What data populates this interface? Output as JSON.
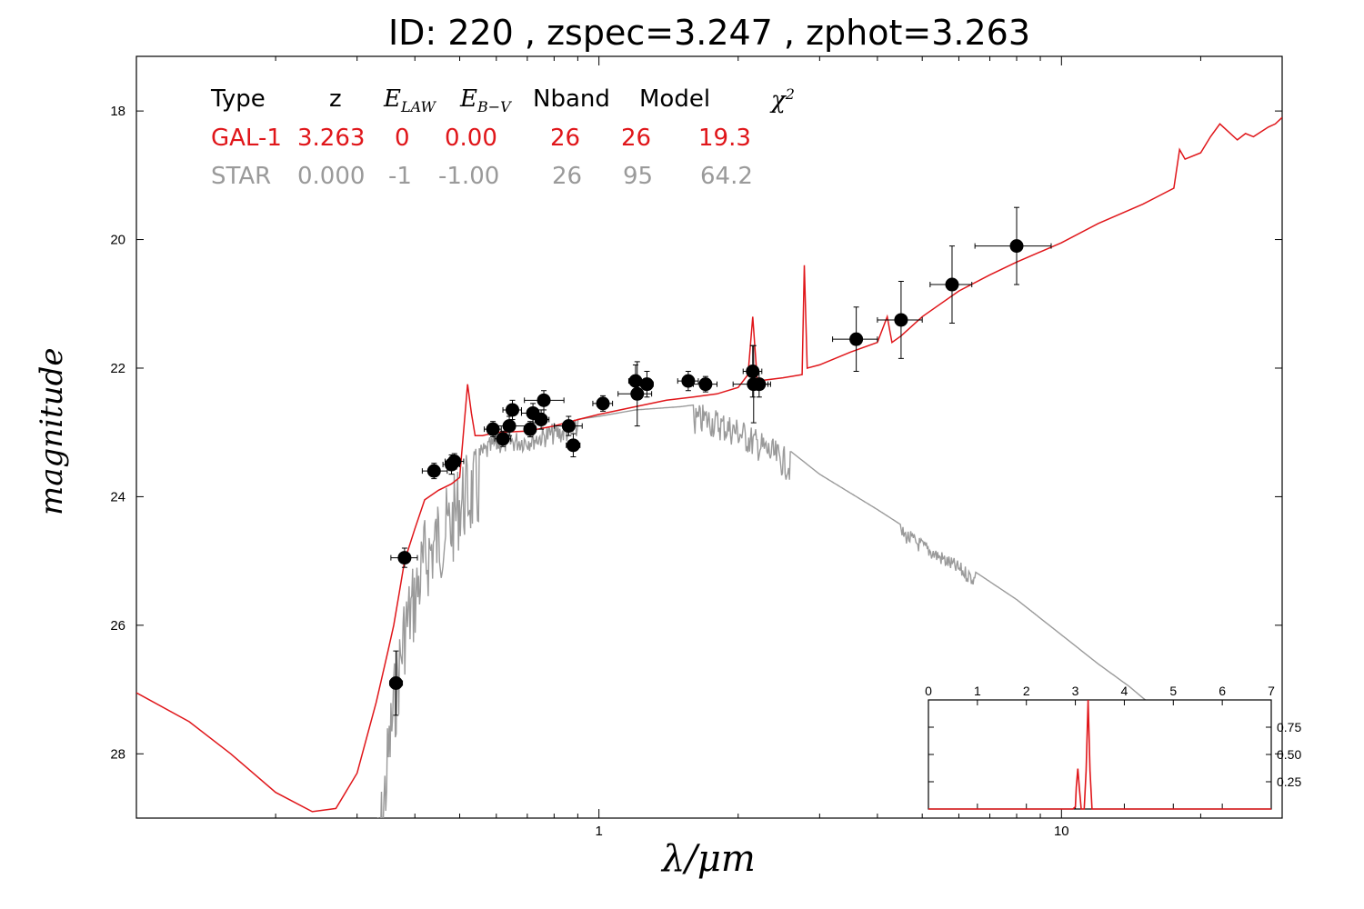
{
  "title": "ID:  220   , zspec=3.247 , zphot=3.263",
  "xlabel": "λ/μm",
  "ylabel": "magnitude",
  "colors": {
    "galaxy": "#e0161a",
    "star": "#9a9a9a",
    "points": "#000000"
  },
  "legend": {
    "headers": [
      "Type",
      "z",
      "E_LAW",
      "E_B−V",
      "Nband",
      "Model",
      "χ²"
    ],
    "rows": [
      {
        "values": [
          "GAL-1",
          "3.263",
          "0",
          "0.00",
          "26",
          "26",
          "19.3"
        ],
        "color": "#e0161a"
      },
      {
        "values": [
          "STAR",
          "0.000",
          "-1",
          "-1.00",
          "26",
          "95",
          "64.2"
        ],
        "color": "#9a9a9a"
      }
    ]
  },
  "chart_data": [
    {
      "type": "scatter",
      "xscale": "log",
      "xlim": [
        0.1,
        30
      ],
      "ylim": [
        29,
        17.15
      ],
      "xticks": [
        1,
        10
      ],
      "xticklabels": [
        "1",
        "10"
      ],
      "yticks": [
        18,
        20,
        22,
        24,
        26,
        28
      ],
      "yticklabels": [
        "18",
        "20",
        "22",
        "24",
        "26",
        "28"
      ],
      "xlabel": "λ/μm",
      "ylabel": "magnitude",
      "points": [
        {
          "x": 0.364,
          "y": 26.9,
          "xerr": [
            0.353,
            0.376
          ],
          "yerr": 0.5
        },
        {
          "x": 0.38,
          "y": 24.95,
          "xerr": [
            0.355,
            0.405
          ],
          "yerr": 0.15
        },
        {
          "x": 0.44,
          "y": 23.6,
          "xerr": [
            0.415,
            0.47
          ],
          "yerr": 0.12
        },
        {
          "x": 0.48,
          "y": 23.5,
          "xerr": [
            0.46,
            0.5
          ],
          "yerr": 0.15
        },
        {
          "x": 0.487,
          "y": 23.45,
          "xerr": [
            0.465,
            0.51
          ],
          "yerr": 0.12
        },
        {
          "x": 0.59,
          "y": 22.95,
          "xerr": [
            0.565,
            0.615
          ],
          "yerr": 0.12
        },
        {
          "x": 0.62,
          "y": 23.1,
          "xerr": [
            0.595,
            0.645
          ],
          "yerr": 0.12
        },
        {
          "x": 0.64,
          "y": 22.9,
          "xerr": [
            0.58,
            0.7
          ],
          "yerr": 0.15
        },
        {
          "x": 0.65,
          "y": 22.65,
          "xerr": [
            0.62,
            0.68
          ],
          "yerr": 0.15
        },
        {
          "x": 0.71,
          "y": 22.95,
          "xerr": [
            0.69,
            0.73
          ],
          "yerr": 0.12
        },
        {
          "x": 0.72,
          "y": 22.7,
          "xerr": [
            0.68,
            0.76
          ],
          "yerr": 0.15
        },
        {
          "x": 0.75,
          "y": 22.8,
          "xerr": [
            0.72,
            0.78
          ],
          "yerr": 0.15
        },
        {
          "x": 0.76,
          "y": 22.5,
          "xerr": [
            0.69,
            0.84
          ],
          "yerr": 0.15
        },
        {
          "x": 0.86,
          "y": 22.9,
          "xerr": [
            0.8,
            0.92
          ],
          "yerr": 0.15
        },
        {
          "x": 0.88,
          "y": 23.2,
          "xerr": [
            0.85,
            0.91
          ],
          "yerr": 0.18
        },
        {
          "x": 1.02,
          "y": 22.55,
          "xerr": [
            0.97,
            1.07
          ],
          "yerr": 0.12
        },
        {
          "x": 1.2,
          "y": 22.2,
          "xerr": [
            1.16,
            1.25
          ],
          "yerr": 0.25
        },
        {
          "x": 1.21,
          "y": 22.4,
          "xerr": [
            1.1,
            1.3
          ],
          "yerr": 0.5
        },
        {
          "x": 1.27,
          "y": 22.25,
          "xerr": [
            1.23,
            1.31
          ],
          "yerr": 0.2
        },
        {
          "x": 1.56,
          "y": 22.2,
          "xerr": [
            1.48,
            1.64
          ],
          "yerr": 0.15
        },
        {
          "x": 1.7,
          "y": 22.25,
          "xerr": [
            1.6,
            1.8
          ],
          "yerr": 0.12
        },
        {
          "x": 2.15,
          "y": 22.05,
          "xerr": [
            2.05,
            2.25
          ],
          "yerr": 0.4
        },
        {
          "x": 2.16,
          "y": 22.25,
          "xerr": [
            1.95,
            2.35
          ],
          "yerr": 0.6
        },
        {
          "x": 2.22,
          "y": 22.25,
          "xerr": [
            2.12,
            2.32
          ],
          "yerr": 0.2
        },
        {
          "x": 3.6,
          "y": 21.55,
          "xerr": [
            3.2,
            4.0
          ],
          "yerr": 0.5
        },
        {
          "x": 4.5,
          "y": 21.25,
          "xerr": [
            4.0,
            5.0
          ],
          "yerr": 0.6
        },
        {
          "x": 5.8,
          "y": 20.7,
          "xerr": [
            5.2,
            6.4
          ],
          "yerr": 0.6
        },
        {
          "x": 8.0,
          "y": 20.1,
          "xerr": [
            6.5,
            9.5
          ],
          "yerr": 0.6
        }
      ],
      "series": [
        {
          "name": "GAL-1",
          "color": "#e0161a",
          "x": [
            0.1,
            0.13,
            0.16,
            0.2,
            0.24,
            0.27,
            0.3,
            0.33,
            0.35,
            0.36,
            0.37,
            0.38,
            0.4,
            0.42,
            0.45,
            0.48,
            0.5,
            0.52,
            0.53,
            0.54,
            0.56,
            0.6,
            0.7,
            0.8,
            0.9,
            1.0,
            1.2,
            1.4,
            1.6,
            1.8,
            2.0,
            2.1,
            2.15,
            2.2,
            2.5,
            2.75,
            2.78,
            2.82,
            3.0,
            3.5,
            4.0,
            4.2,
            4.3,
            4.5,
            5.0,
            6.0,
            7.0,
            8.0,
            10.0,
            12.0,
            15.0,
            17.5,
            18.0,
            18.5,
            20.0,
            21.0,
            22.0,
            24.0,
            25.0,
            26.0,
            28.0,
            29.0,
            30.0
          ],
          "y": [
            27.05,
            27.5,
            28.0,
            28.6,
            28.9,
            28.85,
            28.3,
            27.2,
            26.4,
            26.0,
            25.5,
            25.0,
            24.5,
            24.05,
            23.9,
            23.8,
            23.7,
            22.25,
            22.7,
            23.05,
            23.05,
            23.0,
            22.98,
            22.9,
            22.8,
            22.72,
            22.6,
            22.5,
            22.45,
            22.4,
            22.3,
            22.1,
            21.2,
            22.2,
            22.15,
            22.1,
            20.4,
            22.0,
            21.95,
            21.75,
            21.6,
            21.2,
            21.6,
            21.5,
            21.2,
            20.8,
            20.55,
            20.35,
            20.05,
            19.75,
            19.45,
            19.2,
            18.6,
            18.75,
            18.65,
            18.4,
            18.2,
            18.45,
            18.35,
            18.4,
            18.25,
            18.2,
            18.1
          ]
        },
        {
          "name": "STAR",
          "color": "#9a9a9a",
          "x": [
            0.33,
            0.34,
            0.35,
            0.36,
            0.37,
            0.38,
            0.4,
            0.42,
            0.45,
            0.48,
            0.5,
            0.52,
            0.55,
            0.6,
            0.7,
            0.8,
            1.0,
            1.2,
            1.5,
            1.7,
            2.0,
            2.5,
            3.0,
            4.0,
            5.0,
            6.0,
            8.0,
            10.0,
            12.0,
            14.0,
            16.0
          ],
          "y": [
            29.0,
            28.4,
            27.4,
            26.6,
            26.0,
            25.4,
            24.9,
            24.3,
            23.95,
            23.75,
            23.4,
            23.3,
            23.2,
            23.0,
            22.95,
            22.85,
            22.75,
            22.65,
            22.6,
            22.55,
            22.75,
            23.2,
            23.65,
            24.2,
            24.65,
            25.0,
            25.6,
            26.15,
            26.6,
            26.95,
            27.3
          ]
        }
      ]
    },
    {
      "type": "line",
      "xlim": [
        0,
        7
      ],
      "ylim": [
        0,
        1.0
      ],
      "xticks": [
        0,
        1,
        2,
        3,
        4,
        5,
        6,
        7
      ],
      "xticklabels": [
        "0",
        "1",
        "2",
        "3",
        "4",
        "5",
        "6",
        "7"
      ],
      "yticks": [
        0.25,
        0.5,
        0.75
      ],
      "yticklabels": [
        "0.25",
        "0.50",
        "0.75"
      ],
      "series": [
        {
          "color": "#e0161a",
          "x": [
            0,
            2.95,
            3.0,
            3.02,
            3.05,
            3.08,
            3.12,
            3.18,
            3.22,
            3.26,
            3.3,
            3.34,
            3.4,
            7.0
          ],
          "y": [
            0,
            0,
            0.02,
            0.2,
            0.37,
            0.2,
            0.0,
            0.0,
            0.35,
            1.0,
            0.35,
            0.0,
            0,
            0
          ]
        }
      ]
    }
  ]
}
